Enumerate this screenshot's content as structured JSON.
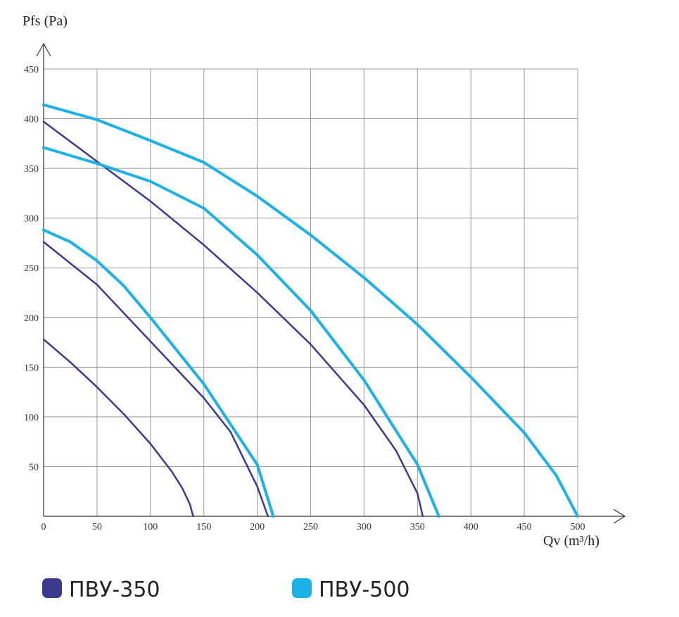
{
  "chart_data": {
    "type": "line",
    "y_label": "Pfs (Pa)",
    "x_label": "Qv (m³/h)",
    "xlim": [
      0,
      500
    ],
    "ylim": [
      0,
      450
    ],
    "xticks": [
      0,
      50,
      100,
      150,
      200,
      250,
      300,
      350,
      400,
      450,
      500
    ],
    "yticks": [
      50,
      100,
      150,
      200,
      250,
      300,
      350,
      400,
      450
    ],
    "grid": true,
    "series": [
      {
        "name": "ПВУ-350",
        "color": "#3b3a8e",
        "curves": [
          {
            "x": [
              0,
              25,
              50,
              75,
              100,
              120,
              130,
              137,
              140
            ],
            "values": [
              178,
              155,
              130,
              103,
              73,
              45,
              28,
              12,
              0
            ]
          },
          {
            "x": [
              0,
              50,
              100,
              150,
              175,
              200,
              210
            ],
            "values": [
              276,
              233,
              176,
              119,
              85,
              30,
              0
            ]
          },
          {
            "x": [
              0,
              50,
              100,
              150,
              200,
              250,
              300,
              330,
              350,
              355
            ],
            "values": [
              397,
              357,
              317,
              273,
              225,
              173,
              112,
              66,
              23,
              0
            ]
          }
        ]
      },
      {
        "name": "ПВУ-500",
        "color": "#1ab2e8",
        "curves": [
          {
            "x": [
              0,
              25,
              50,
              75,
              100,
              150,
              200,
              215
            ],
            "values": [
              288,
              276,
              257,
              232,
              200,
              133,
              52,
              0
            ]
          },
          {
            "x": [
              0,
              50,
              100,
              150,
              200,
              250,
              300,
              350,
              370
            ],
            "values": [
              371,
              355,
              337,
              310,
              263,
              207,
              137,
              52,
              0
            ]
          },
          {
            "x": [
              0,
              50,
              100,
              150,
              200,
              250,
              300,
              350,
              400,
              450,
              480,
              500
            ],
            "values": [
              414,
              399,
              378,
              356,
              322,
              283,
              240,
              193,
              140,
              84,
              41,
              0
            ]
          }
        ]
      }
    ]
  }
}
